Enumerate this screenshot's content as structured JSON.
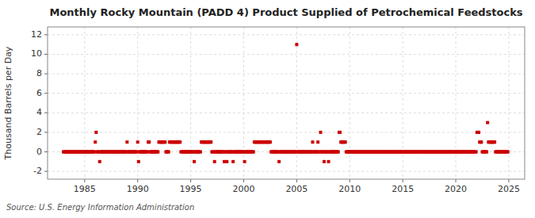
{
  "chart_data": {
    "type": "scatter",
    "title": "Monthly Rocky Mountain (PADD 4) Product Supplied of Petrochemical Feedstocks",
    "ylabel": "Thousand Barrels per Day",
    "source": "Source: U.S. Energy Information Administration",
    "color": "#cc0000",
    "marker": "square",
    "grid": true,
    "xlim": [
      1981.5,
      2026.5
    ],
    "ylim": [
      -2.8,
      12.8
    ],
    "xticks": [
      1985,
      1990,
      1995,
      2000,
      2005,
      2010,
      2015,
      2020,
      2025
    ],
    "yticks": [
      -2,
      0,
      2,
      4,
      6,
      8,
      10,
      12
    ],
    "x": [
      1983.0,
      1983.083,
      1983.167,
      1983.25,
      1983.333,
      1983.417,
      1983.5,
      1983.583,
      1983.667,
      1983.75,
      1983.833,
      1983.917,
      1984.0,
      1984.083,
      1984.167,
      1984.25,
      1984.333,
      1984.417,
      1984.5,
      1984.583,
      1984.667,
      1984.75,
      1984.833,
      1984.917,
      1985.0,
      1985.083,
      1985.167,
      1985.25,
      1985.333,
      1985.417,
      1985.5,
      1985.583,
      1985.667,
      1985.75,
      1985.833,
      1985.917,
      1986.0,
      1986.083,
      1986.167,
      1986.25,
      1986.333,
      1986.417,
      1986.5,
      1986.583,
      1986.667,
      1986.75,
      1986.833,
      1986.917,
      1987.0,
      1987.083,
      1987.167,
      1987.25,
      1987.333,
      1987.417,
      1987.5,
      1987.583,
      1987.667,
      1987.75,
      1987.833,
      1987.917,
      1988.0,
      1988.083,
      1988.167,
      1988.25,
      1988.333,
      1988.417,
      1988.5,
      1988.583,
      1988.667,
      1988.75,
      1988.833,
      1988.917,
      1989.0,
      1989.083,
      1989.167,
      1989.25,
      1989.333,
      1989.417,
      1989.5,
      1989.583,
      1989.667,
      1989.75,
      1989.833,
      1989.917,
      1990.0,
      1990.083,
      1990.167,
      1990.25,
      1990.333,
      1990.417,
      1990.5,
      1990.583,
      1990.667,
      1990.75,
      1990.833,
      1990.917,
      1991.0,
      1991.083,
      1991.167,
      1991.25,
      1991.333,
      1991.417,
      1991.5,
      1991.583,
      1991.667,
      1991.75,
      1991.833,
      1991.917,
      1992.0,
      1992.083,
      1992.167,
      1992.25,
      1992.333,
      1992.417,
      1992.5,
      1992.583,
      1992.667,
      1992.75,
      1992.833,
      1992.917,
      1993.0,
      1993.083,
      1993.167,
      1993.25,
      1993.333,
      1993.417,
      1993.5,
      1993.583,
      1993.667,
      1993.75,
      1993.833,
      1993.917,
      1994.0,
      1994.083,
      1994.167,
      1994.25,
      1994.333,
      1994.417,
      1994.5,
      1994.583,
      1994.667,
      1994.75,
      1994.833,
      1994.917,
      1995.0,
      1995.083,
      1995.167,
      1995.25,
      1995.333,
      1995.417,
      1995.5,
      1995.583,
      1995.667,
      1995.75,
      1995.833,
      1995.917,
      1996.0,
      1996.083,
      1996.167,
      1996.25,
      1996.333,
      1996.417,
      1996.5,
      1996.583,
      1996.667,
      1996.75,
      1996.833,
      1996.917,
      1997.0,
      1997.083,
      1997.167,
      1997.25,
      1997.333,
      1997.417,
      1997.5,
      1997.583,
      1997.667,
      1997.75,
      1997.833,
      1997.917,
      1998.0,
      1998.083,
      1998.167,
      1998.25,
      1998.333,
      1998.417,
      1998.5,
      1998.583,
      1998.667,
      1998.75,
      1998.833,
      1998.917,
      1999.0,
      1999.083,
      1999.167,
      1999.25,
      1999.333,
      1999.417,
      1999.5,
      1999.583,
      1999.667,
      1999.75,
      1999.833,
      1999.917,
      2000.0,
      2000.083,
      2000.167,
      2000.25,
      2000.333,
      2000.417,
      2000.5,
      2000.583,
      2000.667,
      2000.75,
      2000.833,
      2000.917,
      2001.0,
      2001.083,
      2001.167,
      2001.25,
      2001.333,
      2001.417,
      2001.5,
      2001.583,
      2001.667,
      2001.75,
      2001.833,
      2001.917,
      2002.0,
      2002.083,
      2002.167,
      2002.25,
      2002.333,
      2002.417,
      2002.5,
      2002.583,
      2002.667,
      2002.75,
      2002.833,
      2002.917,
      2003.0,
      2003.083,
      2003.167,
      2003.25,
      2003.333,
      2003.417,
      2003.5,
      2003.583,
      2003.667,
      2003.75,
      2003.833,
      2003.917,
      2004.0,
      2004.083,
      2004.167,
      2004.25,
      2004.333,
      2004.417,
      2004.5,
      2004.583,
      2004.667,
      2004.75,
      2004.833,
      2004.917,
      2005.0,
      2005.083,
      2005.167,
      2005.25,
      2005.333,
      2005.417,
      2005.5,
      2005.583,
      2005.667,
      2005.75,
      2005.833,
      2005.917,
      2006.0,
      2006.083,
      2006.167,
      2006.25,
      2006.333,
      2006.417,
      2006.5,
      2006.583,
      2006.667,
      2006.75,
      2006.833,
      2006.917,
      2007.0,
      2007.083,
      2007.167,
      2007.25,
      2007.333,
      2007.417,
      2007.5,
      2007.583,
      2007.667,
      2007.75,
      2007.833,
      2007.917,
      2008.0,
      2008.083,
      2008.167,
      2008.25,
      2008.333,
      2008.417,
      2008.5,
      2008.583,
      2008.667,
      2008.75,
      2008.833,
      2008.917,
      2009.0,
      2009.083,
      2009.167,
      2009.25,
      2009.333,
      2009.417,
      2009.5,
      2009.583,
      2009.667,
      2009.75,
      2009.833,
      2009.917,
      2010.0,
      2010.083,
      2010.167,
      2010.25,
      2010.333,
      2010.417,
      2010.5,
      2010.583,
      2010.667,
      2010.75,
      2010.833,
      2010.917,
      2011.0,
      2011.083,
      2011.167,
      2011.25,
      2011.333,
      2011.417,
      2011.5,
      2011.583,
      2011.667,
      2011.75,
      2011.833,
      2011.917,
      2012.0,
      2012.083,
      2012.167,
      2012.25,
      2012.333,
      2012.417,
      2012.5,
      2012.583,
      2012.667,
      2012.75,
      2012.833,
      2012.917,
      2013.0,
      2013.083,
      2013.167,
      2013.25,
      2013.333,
      2013.417,
      2013.5,
      2013.583,
      2013.667,
      2013.75,
      2013.833,
      2013.917,
      2014.0,
      2014.083,
      2014.167,
      2014.25,
      2014.333,
      2014.417,
      2014.5,
      2014.583,
      2014.667,
      2014.75,
      2014.833,
      2014.917,
      2015.0,
      2015.083,
      2015.167,
      2015.25,
      2015.333,
      2015.417,
      2015.5,
      2015.583,
      2015.667,
      2015.75,
      2015.833,
      2015.917,
      2016.0,
      2016.083,
      2016.167,
      2016.25,
      2016.333,
      2016.417,
      2016.5,
      2016.583,
      2016.667,
      2016.75,
      2016.833,
      2016.917,
      2017.0,
      2017.083,
      2017.167,
      2017.25,
      2017.333,
      2017.417,
      2017.5,
      2017.583,
      2017.667,
      2017.75,
      2017.833,
      2017.917,
      2018.0,
      2018.083,
      2018.167,
      2018.25,
      2018.333,
      2018.417,
      2018.5,
      2018.583,
      2018.667,
      2018.75,
      2018.833,
      2018.917,
      2019.0,
      2019.083,
      2019.167,
      2019.25,
      2019.333,
      2019.417,
      2019.5,
      2019.583,
      2019.667,
      2019.75,
      2019.833,
      2019.917,
      2020.0,
      2020.083,
      2020.167,
      2020.25,
      2020.333,
      2020.417,
      2020.5,
      2020.583,
      2020.667,
      2020.75,
      2020.833,
      2020.917,
      2021.0,
      2021.083,
      2021.167,
      2021.25,
      2021.333,
      2021.417,
      2021.5,
      2021.583,
      2021.667,
      2021.75,
      2021.833,
      2021.917,
      2022.0,
      2022.083,
      2022.167,
      2022.25,
      2022.333,
      2022.417,
      2022.5,
      2022.583,
      2022.667,
      2022.75,
      2022.833,
      2022.917,
      2023.0,
      2023.083,
      2023.167,
      2023.25,
      2023.333,
      2023.417,
      2023.5,
      2023.583,
      2023.667,
      2023.75,
      2023.833,
      2023.917,
      2024.0,
      2024.083,
      2024.167,
      2024.25,
      2024.333,
      2024.417,
      2024.5,
      2024.583,
      2024.667,
      2024.75,
      2024.833,
      2024.917
    ],
    "values": [
      0,
      0,
      0,
      0,
      0,
      0,
      0,
      0,
      0,
      0,
      0,
      0,
      0,
      0,
      0,
      0,
      0,
      0,
      0,
      0,
      0,
      0,
      0,
      0,
      0,
      0,
      0,
      0,
      0,
      0,
      0,
      0,
      0,
      0,
      0,
      0,
      1,
      2,
      0,
      0,
      0,
      -1,
      0,
      0,
      0,
      0,
      0,
      0,
      0,
      0,
      0,
      0,
      0,
      0,
      0,
      0,
      0,
      0,
      0,
      0,
      0,
      0,
      0,
      0,
      0,
      0,
      0,
      0,
      0,
      0,
      0,
      0,
      1,
      0,
      0,
      0,
      0,
      0,
      0,
      0,
      0,
      0,
      0,
      0,
      1,
      -1,
      0,
      0,
      0,
      0,
      0,
      0,
      0,
      0,
      0,
      0,
      1,
      1,
      0,
      0,
      0,
      0,
      0,
      0,
      0,
      0,
      0,
      0,
      1,
      1,
      1,
      1,
      1,
      1,
      1,
      1,
      0,
      0,
      0,
      0,
      1,
      1,
      1,
      1,
      1,
      1,
      1,
      1,
      1,
      1,
      1,
      1,
      1,
      0,
      0,
      0,
      0,
      0,
      0,
      0,
      0,
      0,
      0,
      0,
      0,
      0,
      0,
      0,
      -1,
      0,
      0,
      0,
      0,
      0,
      0,
      0,
      1,
      1,
      1,
      1,
      1,
      1,
      1,
      1,
      1,
      1,
      1,
      1,
      0,
      0,
      0,
      -1,
      0,
      0,
      0,
      0,
      0,
      0,
      0,
      0,
      0,
      0,
      -1,
      0,
      0,
      -1,
      0,
      0,
      0,
      0,
      0,
      0,
      -1,
      0,
      0,
      0,
      0,
      0,
      0,
      0,
      0,
      0,
      0,
      0,
      0,
      -1,
      0,
      0,
      0,
      0,
      0,
      0,
      0,
      0,
      0,
      0,
      1,
      1,
      1,
      1,
      1,
      1,
      1,
      1,
      1,
      1,
      1,
      1,
      1,
      1,
      1,
      1,
      1,
      1,
      1,
      0,
      0,
      0,
      0,
      0,
      0,
      0,
      0,
      0,
      -1,
      0,
      0,
      0,
      0,
      0,
      0,
      0,
      0,
      0,
      0,
      0,
      0,
      0,
      0,
      0,
      0,
      0,
      0,
      0,
      11,
      0,
      0,
      0,
      0,
      0,
      0,
      0,
      0,
      0,
      0,
      0,
      0,
      0,
      0,
      0,
      0,
      0,
      1,
      0,
      0,
      0,
      0,
      0,
      1,
      0,
      0,
      2,
      0,
      0,
      0,
      -1,
      0,
      0,
      0,
      0,
      -1,
      0,
      0,
      0,
      0,
      0,
      0,
      0,
      0,
      0,
      0,
      0,
      2,
      2,
      1,
      1,
      1,
      1,
      1,
      1,
      0,
      0,
      0,
      0,
      0,
      0,
      0,
      0,
      0,
      0,
      0,
      0,
      0,
      0,
      0,
      0,
      0,
      0,
      0,
      0,
      0,
      0,
      0,
      0,
      0,
      0,
      0,
      0,
      0,
      0,
      0,
      0,
      0,
      0,
      0,
      0,
      0,
      0,
      0,
      0,
      0,
      0,
      0,
      0,
      0,
      0,
      0,
      0,
      0,
      0,
      0,
      0,
      0,
      0,
      0,
      0,
      0,
      0,
      0,
      0,
      0,
      0,
      0,
      0,
      0,
      0,
      0,
      0,
      0,
      0,
      0,
      0,
      0,
      0,
      0,
      0,
      0,
      0,
      0,
      0,
      0,
      0,
      0,
      0,
      0,
      0,
      0,
      0,
      0,
      0,
      0,
      0,
      0,
      0,
      0,
      0,
      0,
      0,
      0,
      0,
      0,
      0,
      0,
      0,
      0,
      0,
      0,
      0,
      0,
      0,
      0,
      0,
      0,
      0,
      0,
      0,
      0,
      0,
      0,
      0,
      0,
      0,
      0,
      0,
      0,
      0,
      0,
      0,
      0,
      0,
      0,
      0,
      0,
      0,
      0,
      0,
      0,
      0,
      0,
      0,
      0,
      0,
      0,
      0,
      0,
      0,
      0,
      0,
      2,
      2,
      2,
      1,
      1,
      1,
      0,
      0,
      0,
      0,
      0,
      0,
      3,
      1,
      1,
      1,
      1,
      1,
      1,
      1,
      1,
      0,
      0,
      0,
      0,
      0,
      0,
      0,
      0,
      0,
      0,
      0,
      0,
      0,
      0,
      0
    ]
  }
}
